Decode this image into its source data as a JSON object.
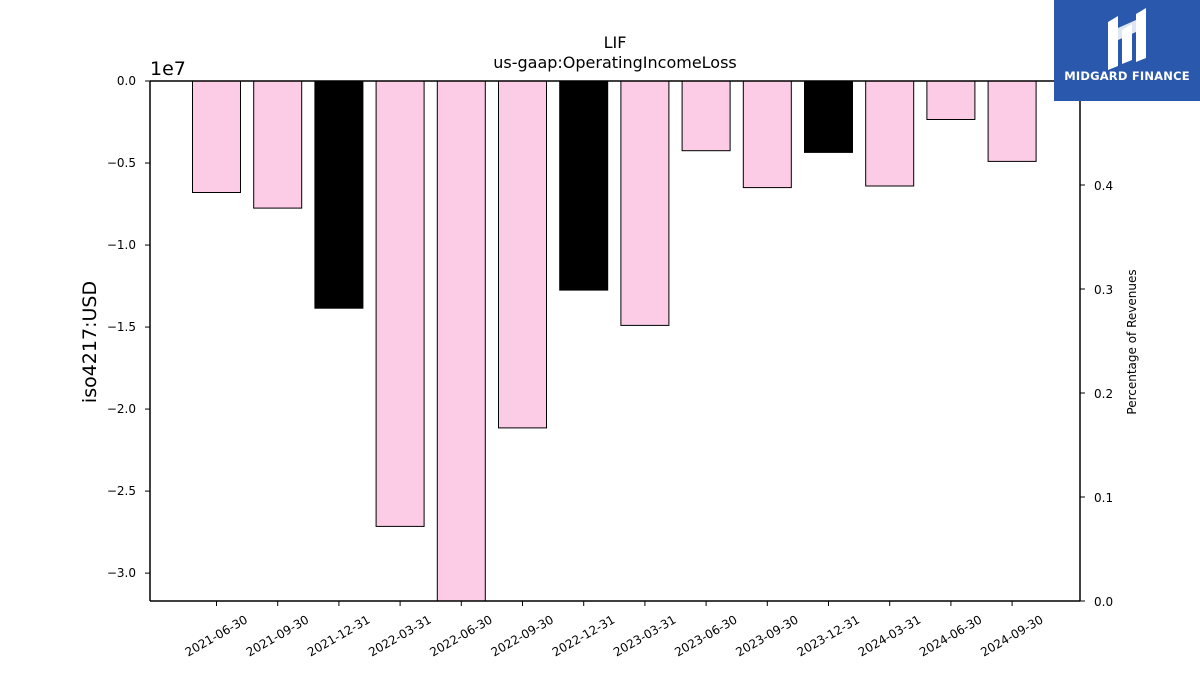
{
  "brand": {
    "name": "MIDGARD FINANCE",
    "color": "#2a58ad"
  },
  "chart_data": {
    "type": "bar",
    "title": "LIF",
    "subtitle": "us-gaap:OperatingIncomeLoss",
    "ylabel": "iso4217:USD",
    "y_offset_label": "1e7",
    "y2label": "Percentage of Revenues",
    "ylim": [
      -3.17,
      0.0
    ],
    "y2lim": [
      0.0,
      0.5
    ],
    "y_ticks": [
      "0.0",
      "−0.5",
      "−1.0",
      "−1.5",
      "−2.0",
      "−2.5",
      "−3.0"
    ],
    "y2_ticks": [
      "0.0",
      "0.1",
      "0.2",
      "0.3",
      "0.4"
    ],
    "categories": [
      "2021-06-30",
      "2021-09-30",
      "2021-12-31",
      "2022-03-31",
      "2022-06-30",
      "2022-09-30",
      "2022-12-31",
      "2023-03-31",
      "2023-06-30",
      "2023-09-30",
      "2023-12-31",
      "2024-03-31",
      "2024-06-30",
      "2024-09-30"
    ],
    "values": [
      -0.68,
      -0.775,
      -1.385,
      -2.715,
      -3.17,
      -2.115,
      -1.275,
      -1.49,
      -0.425,
      -0.65,
      -0.435,
      -0.64,
      -0.235,
      -0.49
    ],
    "bar_colors": [
      "#fccce6",
      "#fccce6",
      "#000000",
      "#fccce6",
      "#fccce6",
      "#fccce6",
      "#000000",
      "#fccce6",
      "#fccce6",
      "#fccce6",
      "#000000",
      "#fccce6",
      "#fccce6",
      "#fccce6"
    ],
    "grid": false,
    "legend": "none"
  }
}
